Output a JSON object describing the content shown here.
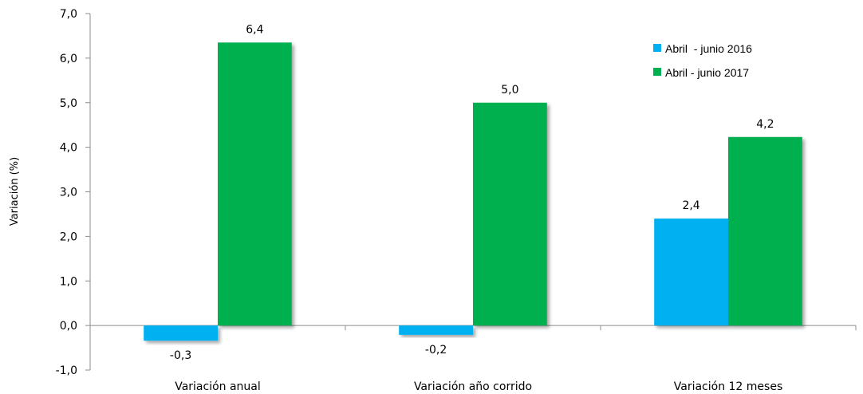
{
  "chart_data": {
    "type": "bar",
    "title": "",
    "xlabel": "",
    "ylabel": "Variación (%)",
    "ylim": [
      -1.0,
      7.0
    ],
    "ytick_step": 1.0,
    "yticks": [
      "-1,0",
      "0,0",
      "1,0",
      "2,0",
      "3,0",
      "4,0",
      "5,0",
      "6,0",
      "7,0"
    ],
    "categories": [
      "Variación anual",
      "Variación año corrido",
      "Variación 12 meses"
    ],
    "series": [
      {
        "name": "Abril  - junio 2016",
        "color": "#00B0F0",
        "values": [
          -0.34,
          -0.21,
          2.4
        ],
        "labels": [
          "-0,3",
          "-0,2",
          "2,4"
        ]
      },
      {
        "name": "Abril - junio 2017",
        "color": "#00B050",
        "values": [
          6.35,
          5.0,
          4.23
        ],
        "labels": [
          "6,4",
          "5,0",
          "4,2"
        ]
      }
    ],
    "legend": "top-right",
    "grid": false
  }
}
